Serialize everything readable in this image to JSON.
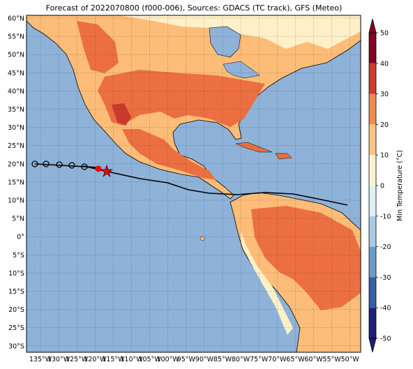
{
  "map": {
    "title": "Forecast of 2022070800 (f000-006), Sources: GDACS (TC track), GFS (Meteo)",
    "lat_labels": [
      "60°N",
      "55°N",
      "50°N",
      "45°N",
      "40°N",
      "35°N",
      "30°N",
      "25°N",
      "20°N",
      "15°N",
      "10°N",
      "5°N",
      "0°",
      "5°S",
      "10°S",
      "15°S",
      "20°S",
      "25°S",
      "30°S"
    ],
    "lon_labels": [
      "135°W",
      "130°W",
      "125°W",
      "120°W",
      "115°W",
      "110°W",
      "105°W",
      "100°W",
      "95°W",
      "90°W",
      "85°W",
      "80°W",
      "75°W",
      "70°W",
      "65°W",
      "60°W",
      "55°W",
      "50°W"
    ],
    "colorbar": {
      "label": "Min Temperature (°C)",
      "ticks": [
        -50,
        -40,
        -30,
        -20,
        -10,
        0,
        10,
        20,
        30,
        40,
        50
      ],
      "colors": [
        "#1c1f7a",
        "#3560a6",
        "#6b9cc9",
        "#a7cbe2",
        "#dff1f7",
        "#fff3cf",
        "#fdc383",
        "#f08a52",
        "#cf3a2a",
        "#85001f"
      ]
    }
  }
}
